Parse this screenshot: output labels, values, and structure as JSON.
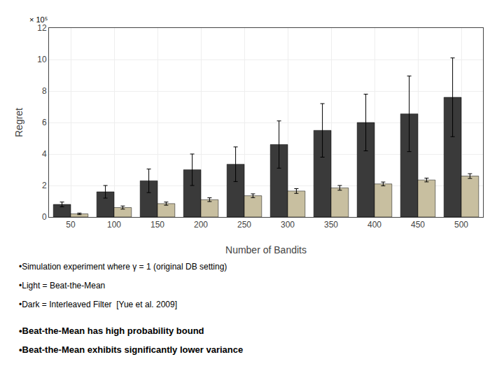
{
  "chart_data": {
    "type": "bar",
    "x": [
      50,
      100,
      150,
      200,
      250,
      300,
      350,
      400,
      450,
      500
    ],
    "series": [
      {
        "color": "#3a3a3a",
        "values": [
          0.8,
          1.6,
          2.3,
          3.0,
          3.35,
          4.6,
          5.5,
          6.0,
          6.55,
          7.6
        ],
        "errors": [
          0.15,
          0.4,
          0.75,
          1.0,
          1.1,
          1.5,
          1.7,
          1.8,
          2.4,
          2.5
        ]
      },
      {
        "color": "#c8bfa0",
        "values": [
          0.2,
          0.6,
          0.85,
          1.1,
          1.35,
          1.65,
          1.85,
          2.1,
          2.35,
          2.6
        ],
        "errors": [
          0.05,
          0.1,
          0.1,
          0.12,
          0.12,
          0.15,
          0.15,
          0.12,
          0.12,
          0.15
        ]
      }
    ],
    "xlabel": "Number of Bandits",
    "ylabel": "Regret",
    "xlim": [
      25,
      525
    ],
    "xticks": [
      50,
      100,
      150,
      200,
      250,
      300,
      350,
      400,
      450,
      500
    ],
    "ylim": [
      0,
      12
    ],
    "yticks": [
      0,
      2,
      4,
      6,
      8,
      10,
      12
    ],
    "grid": true,
    "annotations": [
      "× 10⁵",
      "•Simulation experiment where γ = 1 (original DB setting)",
      "•Light = Beat-the-Mean",
      "•Dark = Interleaved Filter  [Yue et al. 2009]",
      "•Beat-the-Mean has high probability bound",
      "•Beat-the-Mean exhibits significantly lower variance"
    ]
  }
}
